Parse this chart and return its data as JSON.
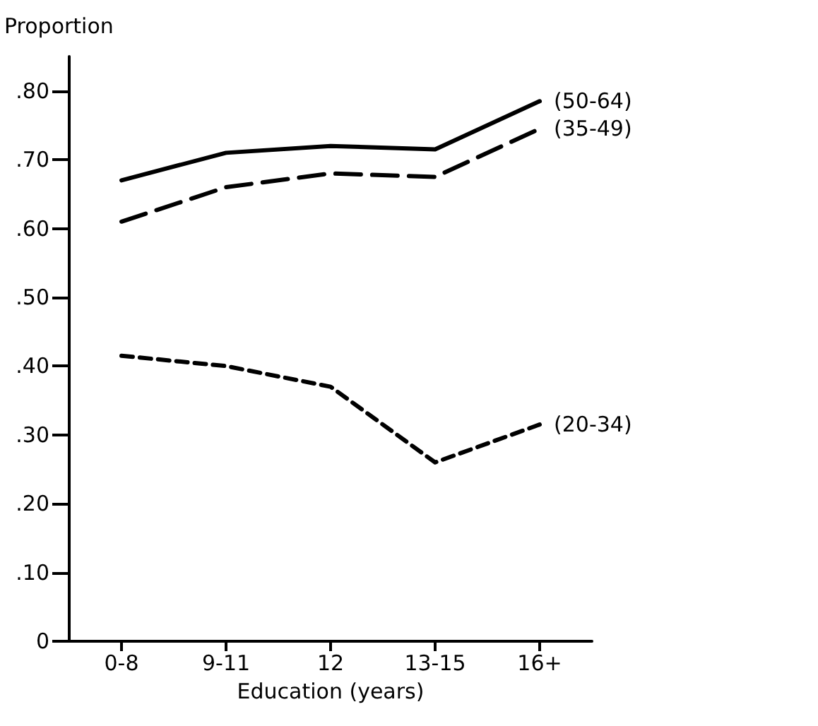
{
  "chart_data": {
    "type": "line",
    "xlabel": "Education (years)",
    "ylabel": "Proportion",
    "categories": [
      "0-8",
      "9-11",
      "12",
      "13-15",
      "16+"
    ],
    "series": [
      {
        "name": "(50-64)",
        "color": "#000000",
        "line_style": "solid",
        "values": [
          0.67,
          0.71,
          0.72,
          0.715,
          0.785
        ]
      },
      {
        "name": "(35-49)",
        "color": "#000000",
        "line_style": "dashed",
        "values": [
          0.61,
          0.66,
          0.68,
          0.675,
          0.745
        ]
      },
      {
        "name": "(20-34)",
        "color": "#000000",
        "line_style": "dotted",
        "values": [
          0.415,
          0.4,
          0.37,
          0.26,
          0.315
        ]
      }
    ],
    "ylim": [
      0,
      0.85
    ],
    "yticks": [
      {
        "value": 0,
        "label": "0"
      },
      {
        "value": 0.1,
        "label": ".10"
      },
      {
        "value": 0.2,
        "label": ".20"
      },
      {
        "value": 0.3,
        "label": ".30"
      },
      {
        "value": 0.4,
        "label": ".40"
      },
      {
        "value": 0.5,
        "label": ".50"
      },
      {
        "value": 0.6,
        "label": ".60"
      },
      {
        "value": 0.7,
        "label": ".70"
      },
      {
        "value": 0.8,
        "label": ".80"
      }
    ],
    "grid": false,
    "legend": false,
    "marker": "none"
  }
}
